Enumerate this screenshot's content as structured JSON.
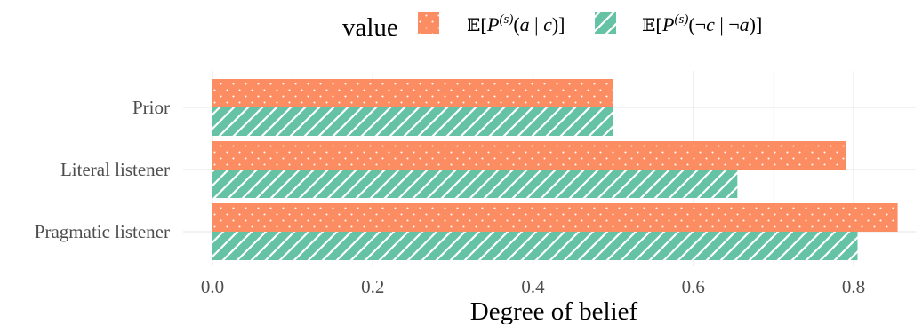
{
  "chart_data": {
    "type": "bar",
    "orientation": "horizontal",
    "categories": [
      "Prior",
      "Literal listener",
      "Pragmatic listener"
    ],
    "series": [
      {
        "key": "a_given_c",
        "name_parts": [
          "𝔼[",
          "P",
          "(s)",
          "(",
          "a",
          " | ",
          "c",
          ")]"
        ],
        "values": [
          0.5,
          0.79,
          0.855
        ],
        "color": "#fc8d62",
        "pattern": "dots"
      },
      {
        "key": "notc_given_nota",
        "name_parts": [
          "𝔼[",
          "P",
          "(s)",
          "(¬",
          "c",
          " | ¬",
          "a",
          ")]"
        ],
        "values": [
          0.5,
          0.655,
          0.805
        ],
        "color": "#66c2a5",
        "pattern": "stripes"
      }
    ],
    "xlabel": "Degree of belief",
    "ylabel": "",
    "xlim": [
      0,
      0.86
    ],
    "xticks": [
      0.0,
      0.2,
      0.4,
      0.6,
      0.8
    ],
    "xtick_labels": [
      "0.0",
      "0.2",
      "0.4",
      "0.6",
      "0.8"
    ],
    "legend_title": "value",
    "legend_position": "top",
    "grid": true
  }
}
